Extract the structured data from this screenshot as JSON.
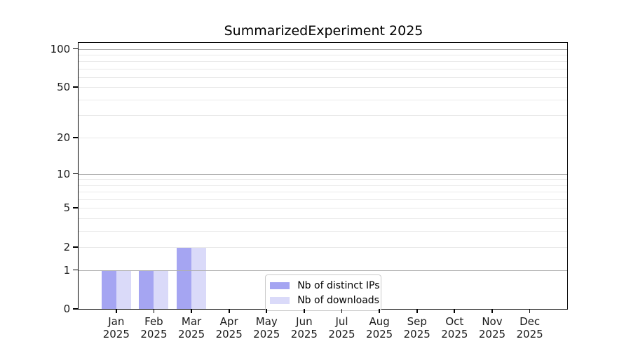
{
  "chart_data": {
    "type": "bar",
    "title": "SummarizedExperiment 2025",
    "categories": [
      "Jan",
      "Feb",
      "Mar",
      "Apr",
      "May",
      "Jun",
      "Jul",
      "Aug",
      "Sep",
      "Oct",
      "Nov",
      "Dec"
    ],
    "category_year": "2025",
    "series": [
      {
        "name": "Nb of distinct IPs",
        "color": "#a5a5f2",
        "values": [
          1,
          1,
          2,
          0,
          0,
          0,
          0,
          0,
          0,
          0,
          0,
          0
        ]
      },
      {
        "name": "Nb of downloads",
        "color": "#dadaf9",
        "values": [
          1,
          1,
          2,
          0,
          0,
          0,
          0,
          0,
          0,
          0,
          0,
          0
        ]
      }
    ],
    "yaxis": {
      "scale": "log1p",
      "ticks": [
        0,
        1,
        2,
        5,
        10,
        20,
        50,
        100
      ],
      "major_gridlines": [
        1,
        10,
        100
      ],
      "minor_gridlines": [
        2,
        3,
        4,
        5,
        6,
        7,
        8,
        9,
        20,
        30,
        40,
        50,
        60,
        70,
        80,
        90
      ],
      "top_value": 111
    },
    "xlabel": "",
    "ylabel": "",
    "grid": "on",
    "legend_position": "bottom-center",
    "colors": {
      "major_grid": "#b0b0b0",
      "minor_grid": "#e9e9e9",
      "spine": "#000000",
      "text": "#1a1a1a"
    }
  }
}
